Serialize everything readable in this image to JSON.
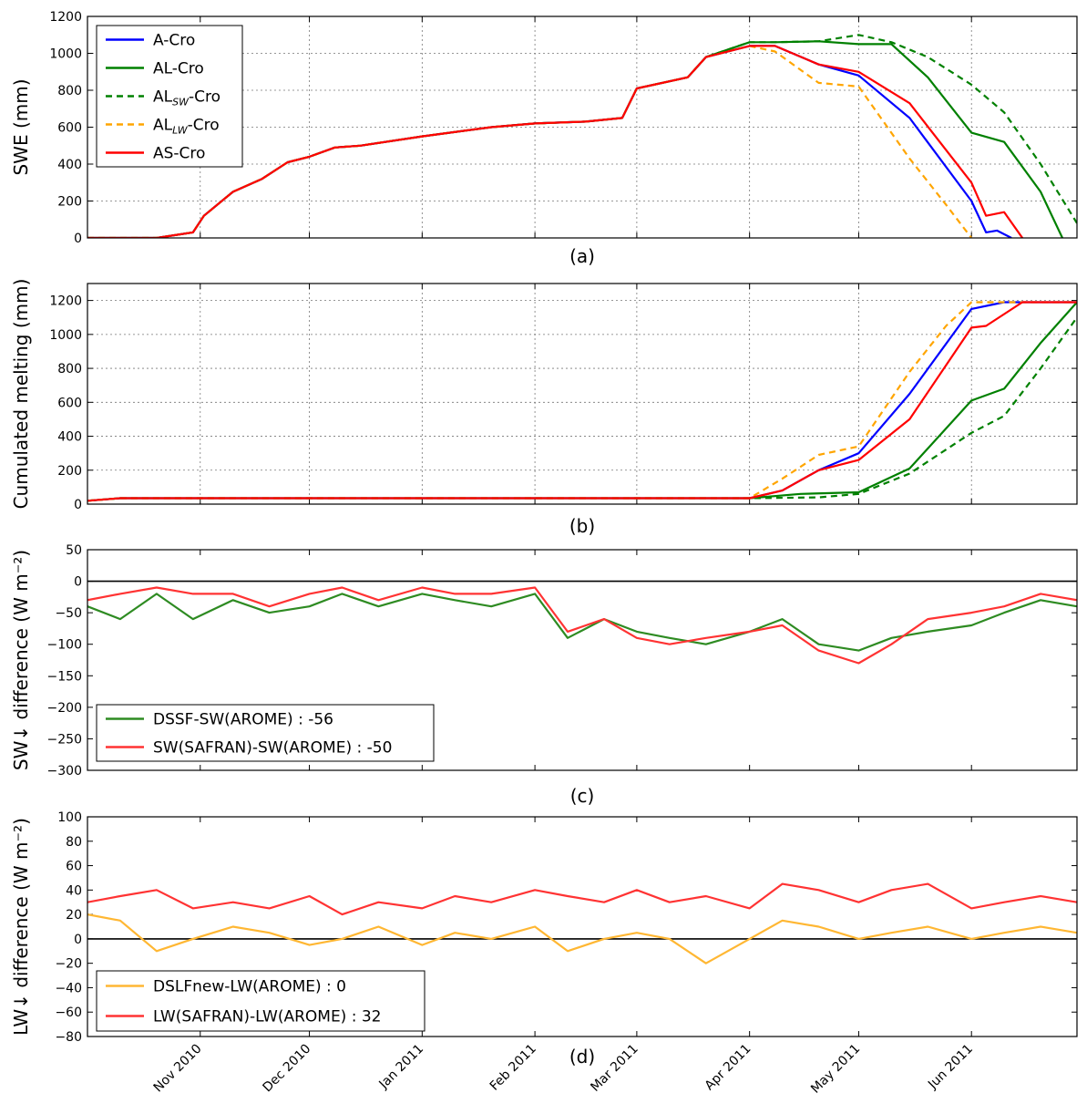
{
  "chart_data": [
    {
      "panel": "a",
      "type": "line",
      "caption": "(a)",
      "ylabel": "SWE (mm)",
      "xlim": [
        "2010-10-01",
        "2011-06-30"
      ],
      "ylim": [
        0,
        1200
      ],
      "yticks": [
        0,
        200,
        400,
        600,
        800,
        1000,
        1200
      ],
      "grid": true,
      "legend_position": "upper-left",
      "series": [
        {
          "name": "A-Cro",
          "color": "#0000ff",
          "dash": "solid",
          "x": [
            "2010-10-01",
            "2010-10-20",
            "2010-10-30",
            "2010-11-02",
            "2010-11-10",
            "2010-11-18",
            "2010-11-25",
            "2010-12-01",
            "2010-12-08",
            "2010-12-15",
            "2011-01-01",
            "2011-01-20",
            "2011-02-01",
            "2011-02-15",
            "2011-02-25",
            "2011-03-01",
            "2011-03-15",
            "2011-03-20",
            "2011-04-01",
            "2011-04-08",
            "2011-04-20",
            "2011-05-01",
            "2011-05-15",
            "2011-06-01",
            "2011-06-05",
            "2011-06-08",
            "2011-06-12"
          ],
          "y": [
            0,
            0,
            30,
            120,
            250,
            320,
            410,
            440,
            490,
            500,
            550,
            600,
            620,
            630,
            650,
            810,
            870,
            980,
            1040,
            1040,
            940,
            880,
            650,
            200,
            30,
            40,
            0
          ]
        },
        {
          "name": "AL-Cro",
          "color": "#008000",
          "dash": "solid",
          "x": [
            "2010-10-01",
            "2010-10-20",
            "2010-10-30",
            "2010-11-02",
            "2010-11-10",
            "2010-11-18",
            "2010-11-25",
            "2010-12-01",
            "2010-12-08",
            "2010-12-15",
            "2011-01-01",
            "2011-01-20",
            "2011-02-01",
            "2011-02-15",
            "2011-02-25",
            "2011-03-01",
            "2011-03-15",
            "2011-03-20",
            "2011-04-01",
            "2011-04-08",
            "2011-04-20",
            "2011-05-01",
            "2011-05-10",
            "2011-05-20",
            "2011-06-01",
            "2011-06-10",
            "2011-06-20",
            "2011-06-26"
          ],
          "y": [
            0,
            0,
            30,
            120,
            250,
            320,
            410,
            440,
            490,
            500,
            550,
            600,
            620,
            630,
            650,
            810,
            870,
            980,
            1060,
            1060,
            1065,
            1050,
            1050,
            870,
            570,
            520,
            250,
            0
          ]
        },
        {
          "name": "AL_SW-Cro",
          "color": "#008000",
          "dash": "dashed",
          "x": [
            "2010-10-01",
            "2010-10-20",
            "2010-10-30",
            "2010-11-02",
            "2010-11-10",
            "2010-11-18",
            "2010-11-25",
            "2010-12-01",
            "2010-12-08",
            "2010-12-15",
            "2011-01-01",
            "2011-01-20",
            "2011-02-01",
            "2011-02-15",
            "2011-02-25",
            "2011-03-01",
            "2011-03-15",
            "2011-03-20",
            "2011-04-01",
            "2011-04-08",
            "2011-04-20",
            "2011-05-01",
            "2011-05-10",
            "2011-05-20",
            "2011-06-01",
            "2011-06-10",
            "2011-06-20",
            "2011-06-30"
          ],
          "y": [
            0,
            0,
            30,
            120,
            250,
            320,
            410,
            440,
            490,
            500,
            550,
            600,
            620,
            630,
            650,
            810,
            870,
            980,
            1060,
            1060,
            1065,
            1100,
            1060,
            980,
            830,
            680,
            400,
            80
          ]
        },
        {
          "name": "AL_LW-Cro",
          "color": "#ffa500",
          "dash": "dashed",
          "x": [
            "2010-10-01",
            "2010-10-20",
            "2010-10-30",
            "2010-11-02",
            "2010-11-10",
            "2010-11-18",
            "2010-11-25",
            "2010-12-01",
            "2010-12-08",
            "2010-12-15",
            "2011-01-01",
            "2011-01-20",
            "2011-02-01",
            "2011-02-15",
            "2011-02-25",
            "2011-03-01",
            "2011-03-15",
            "2011-03-20",
            "2011-04-01",
            "2011-04-08",
            "2011-04-20",
            "2011-05-01",
            "2011-05-15",
            "2011-05-25",
            "2011-06-01"
          ],
          "y": [
            0,
            0,
            30,
            120,
            250,
            320,
            410,
            440,
            490,
            500,
            550,
            600,
            620,
            630,
            650,
            810,
            870,
            980,
            1040,
            1010,
            840,
            820,
            430,
            180,
            0
          ]
        },
        {
          "name": "AS-Cro",
          "color": "#ff0000",
          "dash": "solid",
          "x": [
            "2010-10-01",
            "2010-10-20",
            "2010-10-30",
            "2010-11-02",
            "2010-11-10",
            "2010-11-18",
            "2010-11-25",
            "2010-12-01",
            "2010-12-08",
            "2010-12-15",
            "2011-01-01",
            "2011-01-20",
            "2011-02-01",
            "2011-02-15",
            "2011-02-25",
            "2011-03-01",
            "2011-03-15",
            "2011-03-20",
            "2011-04-01",
            "2011-04-08",
            "2011-04-20",
            "2011-05-01",
            "2011-05-15",
            "2011-06-01",
            "2011-06-05",
            "2011-06-10",
            "2011-06-15"
          ],
          "y": [
            0,
            0,
            30,
            120,
            250,
            320,
            410,
            440,
            490,
            500,
            550,
            600,
            620,
            630,
            650,
            810,
            870,
            980,
            1040,
            1040,
            940,
            900,
            730,
            300,
            120,
            140,
            0
          ]
        }
      ]
    },
    {
      "panel": "b",
      "type": "line",
      "caption": "(b)",
      "ylabel": "Cumulated melting (mm)",
      "xlim": [
        "2010-10-01",
        "2011-06-30"
      ],
      "ylim": [
        0,
        1300
      ],
      "yticks": [
        0,
        200,
        400,
        600,
        800,
        1000,
        1200
      ],
      "grid": true,
      "series": [
        {
          "name": "A-Cro",
          "color": "#0000ff",
          "dash": "solid",
          "x": [
            "2010-10-01",
            "2010-10-10",
            "2011-04-01",
            "2011-04-10",
            "2011-04-20",
            "2011-05-01",
            "2011-05-15",
            "2011-06-01",
            "2011-06-10",
            "2011-06-30"
          ],
          "y": [
            20,
            35,
            35,
            80,
            200,
            300,
            650,
            1150,
            1190,
            1190
          ]
        },
        {
          "name": "AL-Cro",
          "color": "#008000",
          "dash": "solid",
          "x": [
            "2010-10-01",
            "2010-10-10",
            "2011-04-01",
            "2011-04-15",
            "2011-05-01",
            "2011-05-15",
            "2011-06-01",
            "2011-06-10",
            "2011-06-20",
            "2011-06-30"
          ],
          "y": [
            20,
            35,
            35,
            60,
            70,
            210,
            610,
            680,
            950,
            1190
          ]
        },
        {
          "name": "AL_SW-Cro",
          "color": "#008000",
          "dash": "dashed",
          "x": [
            "2010-10-01",
            "2010-10-10",
            "2011-04-01",
            "2011-04-20",
            "2011-05-01",
            "2011-05-15",
            "2011-06-01",
            "2011-06-10",
            "2011-06-20",
            "2011-06-30"
          ],
          "y": [
            20,
            35,
            35,
            40,
            60,
            180,
            420,
            520,
            800,
            1100
          ]
        },
        {
          "name": "AL_LW-Cro",
          "color": "#ffa500",
          "dash": "dashed",
          "x": [
            "2010-10-01",
            "2010-10-10",
            "2011-04-01",
            "2011-04-10",
            "2011-04-20",
            "2011-05-01",
            "2011-05-15",
            "2011-05-25",
            "2011-06-01",
            "2011-06-30"
          ],
          "y": [
            20,
            35,
            35,
            150,
            290,
            340,
            780,
            1050,
            1190,
            1190
          ]
        },
        {
          "name": "AS-Cro",
          "color": "#ff0000",
          "dash": "solid",
          "x": [
            "2010-10-01",
            "2010-10-10",
            "2011-04-01",
            "2011-04-10",
            "2011-04-20",
            "2011-05-01",
            "2011-05-15",
            "2011-06-01",
            "2011-06-05",
            "2011-06-15",
            "2011-06-30"
          ],
          "y": [
            20,
            35,
            35,
            80,
            200,
            260,
            500,
            1040,
            1050,
            1190,
            1190
          ]
        }
      ]
    },
    {
      "panel": "c",
      "type": "line",
      "caption": "(c)",
      "ylabel": "SW↓ difference (W m⁻²)",
      "xlim": [
        "2010-10-01",
        "2011-06-30"
      ],
      "ylim": [
        -300,
        50
      ],
      "yticks": [
        -300,
        -250,
        -200,
        -150,
        -100,
        -50,
        0,
        50
      ],
      "zero_line": true,
      "grid": false,
      "legend_position": "lower-left",
      "series": [
        {
          "name": "DSSF-SW(AROME) : -56",
          "color": "#2e8b22",
          "x": [
            "2010-10-01",
            "2010-10-10",
            "2010-10-20",
            "2010-10-30",
            "2010-11-10",
            "2010-11-20",
            "2010-12-01",
            "2010-12-10",
            "2010-12-20",
            "2011-01-01",
            "2011-01-10",
            "2011-01-20",
            "2011-02-01",
            "2011-02-10",
            "2011-02-20",
            "2011-03-01",
            "2011-03-10",
            "2011-03-20",
            "2011-04-01",
            "2011-04-10",
            "2011-04-20",
            "2011-05-01",
            "2011-05-10",
            "2011-05-20",
            "2011-06-01",
            "2011-06-10",
            "2011-06-20",
            "2011-06-30"
          ],
          "y": [
            -40,
            -60,
            -20,
            -60,
            -30,
            -50,
            -40,
            -20,
            -40,
            -20,
            -30,
            -40,
            -20,
            -90,
            -60,
            -80,
            -90,
            -100,
            -80,
            -60,
            -100,
            -110,
            -90,
            -80,
            -70,
            -50,
            -30,
            -40
          ]
        },
        {
          "name": "SW(SAFRAN)-SW(AROME) : -50",
          "color": "#ff3333",
          "x": [
            "2010-10-01",
            "2010-10-10",
            "2010-10-20",
            "2010-10-30",
            "2010-11-10",
            "2010-11-20",
            "2010-12-01",
            "2010-12-10",
            "2010-12-20",
            "2011-01-01",
            "2011-01-10",
            "2011-01-20",
            "2011-02-01",
            "2011-02-10",
            "2011-02-20",
            "2011-03-01",
            "2011-03-10",
            "2011-03-20",
            "2011-04-01",
            "2011-04-10",
            "2011-04-20",
            "2011-05-01",
            "2011-05-10",
            "2011-05-20",
            "2011-06-01",
            "2011-06-10",
            "2011-06-20",
            "2011-06-30"
          ],
          "y": [
            -30,
            -20,
            -10,
            -20,
            -20,
            -40,
            -20,
            -10,
            -30,
            -10,
            -20,
            -20,
            -10,
            -80,
            -60,
            -90,
            -100,
            -90,
            -80,
            -70,
            -110,
            -130,
            -100,
            -60,
            -50,
            -40,
            -20,
            -30
          ]
        }
      ]
    },
    {
      "panel": "d",
      "type": "line",
      "caption": "(d)",
      "ylabel": "LW↓ difference (W m⁻²)",
      "xlim": [
        "2010-10-01",
        "2011-06-30"
      ],
      "ylim": [
        -80,
        100
      ],
      "yticks": [
        -80,
        -60,
        -40,
        -20,
        0,
        20,
        40,
        60,
        80,
        100
      ],
      "zero_line": true,
      "grid": false,
      "legend_position": "lower-left",
      "xticks": [
        "Nov 2010",
        "Dec 2010",
        "Jan 2011",
        "Feb 2011",
        "Mar 2011",
        "Apr 2011",
        "May 2011",
        "Jun 2011"
      ],
      "series": [
        {
          "name": "DSLFnew-LW(AROME) : 0",
          "color": "#ffb733",
          "x": [
            "2010-10-01",
            "2010-10-10",
            "2010-10-20",
            "2010-10-30",
            "2010-11-10",
            "2010-11-20",
            "2010-12-01",
            "2010-12-10",
            "2010-12-20",
            "2011-01-01",
            "2011-01-10",
            "2011-01-20",
            "2011-02-01",
            "2011-02-10",
            "2011-02-20",
            "2011-03-01",
            "2011-03-10",
            "2011-03-20",
            "2011-04-01",
            "2011-04-10",
            "2011-04-20",
            "2011-05-01",
            "2011-05-10",
            "2011-05-20",
            "2011-06-01",
            "2011-06-10",
            "2011-06-20",
            "2011-06-30"
          ],
          "y": [
            20,
            15,
            -10,
            0,
            10,
            5,
            -5,
            0,
            10,
            -5,
            5,
            0,
            10,
            -10,
            0,
            5,
            0,
            -20,
            0,
            15,
            10,
            0,
            5,
            10,
            0,
            5,
            10,
            5
          ]
        },
        {
          "name": "LW(SAFRAN)-LW(AROME) : 32",
          "color": "#ff3333",
          "x": [
            "2010-10-01",
            "2010-10-10",
            "2010-10-20",
            "2010-10-30",
            "2010-11-10",
            "2010-11-20",
            "2010-12-01",
            "2010-12-10",
            "2010-12-20",
            "2011-01-01",
            "2011-01-10",
            "2011-01-20",
            "2011-02-01",
            "2011-02-10",
            "2011-02-20",
            "2011-03-01",
            "2011-03-10",
            "2011-03-20",
            "2011-04-01",
            "2011-04-10",
            "2011-04-20",
            "2011-05-01",
            "2011-05-10",
            "2011-05-20",
            "2011-06-01",
            "2011-06-10",
            "2011-06-20",
            "2011-06-30"
          ],
          "y": [
            30,
            35,
            40,
            25,
            30,
            25,
            35,
            20,
            30,
            25,
            35,
            30,
            40,
            35,
            30,
            40,
            30,
            35,
            25,
            45,
            40,
            30,
            40,
            45,
            25,
            30,
            35,
            30
          ]
        }
      ]
    }
  ]
}
